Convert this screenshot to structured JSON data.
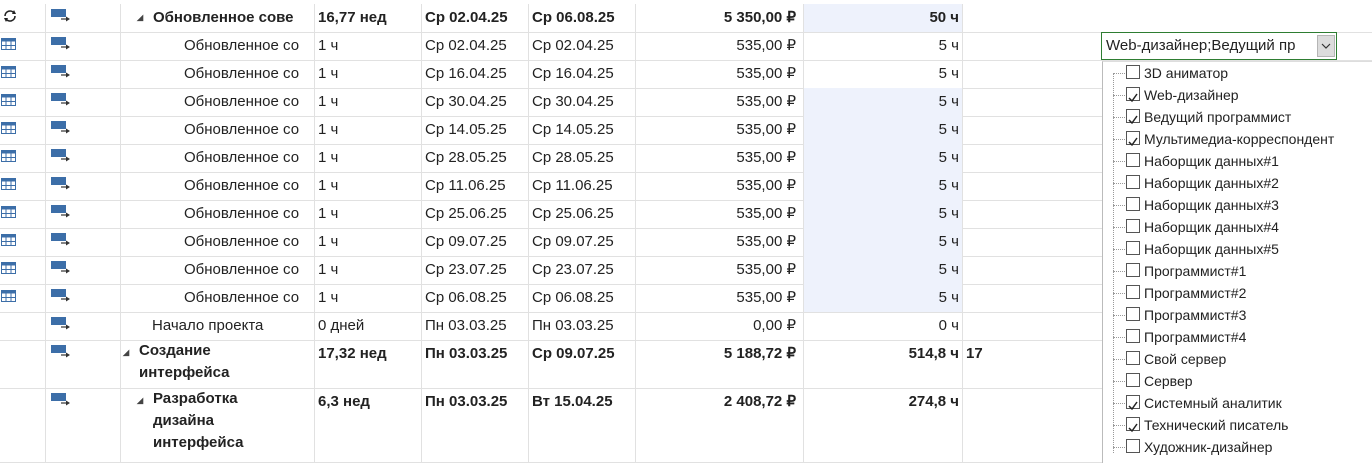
{
  "rows": [
    {
      "name": "Обновленное сове",
      "indent": "summary2",
      "duration": "16,77 нед",
      "start": "Ср 02.04.25",
      "finish": "Ср 06.08.25",
      "cost": "5 350,00 ₽",
      "work": "50 ч",
      "pred": "",
      "bold": true,
      "icon": "cycle",
      "hl": true
    },
    {
      "name": "Обновленное со",
      "indent": "sub",
      "duration": "1 ч",
      "start": "Ср 02.04.25",
      "finish": "Ср 02.04.25",
      "cost": "535,00 ₽",
      "work": "5 ч",
      "pred": "",
      "bold": false,
      "icon": "cal",
      "hl": false
    },
    {
      "name": "Обновленное со",
      "indent": "sub",
      "duration": "1 ч",
      "start": "Ср 16.04.25",
      "finish": "Ср 16.04.25",
      "cost": "535,00 ₽",
      "work": "5 ч",
      "pred": "",
      "bold": false,
      "icon": "cal",
      "hl": false
    },
    {
      "name": "Обновленное со",
      "indent": "sub",
      "duration": "1 ч",
      "start": "Ср 30.04.25",
      "finish": "Ср 30.04.25",
      "cost": "535,00 ₽",
      "work": "5 ч",
      "pred": "",
      "bold": false,
      "icon": "cal",
      "hl": true
    },
    {
      "name": "Обновленное со",
      "indent": "sub",
      "duration": "1 ч",
      "start": "Ср 14.05.25",
      "finish": "Ср 14.05.25",
      "cost": "535,00 ₽",
      "work": "5 ч",
      "pred": "",
      "bold": false,
      "icon": "cal",
      "hl": true
    },
    {
      "name": "Обновленное со",
      "indent": "sub",
      "duration": "1 ч",
      "start": "Ср 28.05.25",
      "finish": "Ср 28.05.25",
      "cost": "535,00 ₽",
      "work": "5 ч",
      "pred": "",
      "bold": false,
      "icon": "cal",
      "hl": true
    },
    {
      "name": "Обновленное со",
      "indent": "sub",
      "duration": "1 ч",
      "start": "Ср 11.06.25",
      "finish": "Ср 11.06.25",
      "cost": "535,00 ₽",
      "work": "5 ч",
      "pred": "",
      "bold": false,
      "icon": "cal",
      "hl": true
    },
    {
      "name": "Обновленное со",
      "indent": "sub",
      "duration": "1 ч",
      "start": "Ср 25.06.25",
      "finish": "Ср 25.06.25",
      "cost": "535,00 ₽",
      "work": "5 ч",
      "pred": "",
      "bold": false,
      "icon": "cal",
      "hl": true
    },
    {
      "name": "Обновленное со",
      "indent": "sub",
      "duration": "1 ч",
      "start": "Ср 09.07.25",
      "finish": "Ср 09.07.25",
      "cost": "535,00 ₽",
      "work": "5 ч",
      "pred": "",
      "bold": false,
      "icon": "cal",
      "hl": true
    },
    {
      "name": "Обновленное со",
      "indent": "sub",
      "duration": "1 ч",
      "start": "Ср 23.07.25",
      "finish": "Ср 23.07.25",
      "cost": "535,00 ₽",
      "work": "5 ч",
      "pred": "",
      "bold": false,
      "icon": "cal",
      "hl": true
    },
    {
      "name": "Обновленное со",
      "indent": "sub",
      "duration": "1 ч",
      "start": "Ср 06.08.25",
      "finish": "Ср 06.08.25",
      "cost": "535,00 ₽",
      "work": "5 ч",
      "pred": "",
      "bold": false,
      "icon": "cal",
      "hl": true
    },
    {
      "name": "Начало проекта",
      "indent": "task",
      "duration": "0 дней",
      "start": "Пн 03.03.25",
      "finish": "Пн 03.03.25",
      "cost": "0,00 ₽",
      "work": "0 ч",
      "pred": "",
      "bold": false,
      "icon": "none",
      "hl": false
    },
    {
      "name": "Создание интерфейса",
      "indent": "summary1",
      "duration": "17,32 нед",
      "start": "Пн 03.03.25",
      "finish": "Ср 09.07.25",
      "cost": "5 188,72 ₽",
      "work": "514,8 ч",
      "pred": "17",
      "bold": true,
      "icon": "none",
      "hl": false
    },
    {
      "name": "Разработка дизайна интерфейса",
      "indent": "summary2",
      "duration": "6,3 нед",
      "start": "Пн 03.03.25",
      "finish": "Вт 15.04.25",
      "cost": "2 408,72 ₽",
      "work": "274,8 ч",
      "pred": "",
      "bold": true,
      "icon": "none",
      "hl": false
    }
  ],
  "resource_combo": {
    "value": "Web-дизайнер;Ведущий пр"
  },
  "resource_options": [
    {
      "label": "3D аниматор",
      "checked": false
    },
    {
      "label": "Web-дизайнер",
      "checked": true
    },
    {
      "label": "Ведущий программист",
      "checked": true
    },
    {
      "label": "Мультимедиа-корреспондент",
      "checked": true
    },
    {
      "label": "Наборщик данных#1",
      "checked": false
    },
    {
      "label": "Наборщик данных#2",
      "checked": false
    },
    {
      "label": "Наборщик данных#3",
      "checked": false
    },
    {
      "label": "Наборщик данных#4",
      "checked": false
    },
    {
      "label": "Наборщик данных#5",
      "checked": false
    },
    {
      "label": "Программист#1",
      "checked": false
    },
    {
      "label": "Программист#2",
      "checked": false
    },
    {
      "label": "Программист#3",
      "checked": false
    },
    {
      "label": "Программист#4",
      "checked": false
    },
    {
      "label": "Свой сервер",
      "checked": false
    },
    {
      "label": "Сервер",
      "checked": false
    },
    {
      "label": "Системный аналитик",
      "checked": true
    },
    {
      "label": "Технический писатель",
      "checked": true
    },
    {
      "label": "Художник-дизайнер",
      "checked": false
    }
  ],
  "colors": {
    "combo_border": "#2e7d32",
    "highlight": "#eef2fc",
    "icon_blue": "#3c6ea8"
  }
}
